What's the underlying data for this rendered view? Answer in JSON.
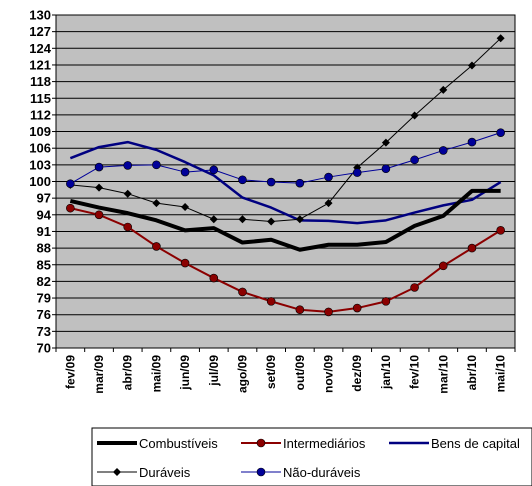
{
  "chart_data": {
    "type": "line",
    "categories": [
      "fev/09",
      "mar/09",
      "abr/09",
      "mai/09",
      "jun/09",
      "jul/09",
      "ago/09",
      "set/09",
      "out/09",
      "nov/09",
      "dez/09",
      "jan/10",
      "fev/10",
      "mar/10",
      "abr/10",
      "mai/10"
    ],
    "yticks": [
      70,
      73,
      76,
      79,
      82,
      85,
      88,
      91,
      94,
      97,
      100,
      103,
      106,
      109,
      112,
      115,
      118,
      121,
      124,
      127,
      130
    ],
    "ylim": [
      70,
      130
    ],
    "grid": true,
    "plot_background": "#c0c0c0",
    "legend_position": "bottom",
    "series": [
      {
        "name": "Combustíveis",
        "color": "#000000",
        "marker": "none",
        "width": 4,
        "values": [
          96.5,
          95.3,
          94.3,
          93.0,
          91.2,
          91.6,
          89.0,
          89.5,
          87.7,
          88.6,
          88.6,
          89.1,
          92.0,
          93.8,
          98.3,
          98.3
        ]
      },
      {
        "name": "Intermediários",
        "color": "#8b0000",
        "marker": "circle",
        "width": 2,
        "values": [
          95.2,
          94.0,
          91.8,
          88.3,
          85.3,
          82.6,
          80.1,
          78.4,
          76.9,
          76.5,
          77.2,
          78.4,
          80.9,
          84.8,
          88.0,
          91.2
        ]
      },
      {
        "name": "Bens de capital",
        "color": "#000080",
        "marker": "none",
        "width": 2.5,
        "values": [
          104.2,
          106.2,
          107.1,
          105.7,
          103.5,
          101.1,
          97.1,
          95.3,
          93.0,
          92.9,
          92.5,
          93.0,
          94.4,
          95.7,
          96.7,
          99.9
        ]
      },
      {
        "name": "Duráveis",
        "color": "#000000",
        "marker": "diamond",
        "width": 1,
        "values": [
          99.4,
          98.9,
          97.8,
          96.1,
          95.4,
          93.2,
          93.2,
          92.8,
          93.2,
          96.1,
          102.5,
          107.0,
          111.9,
          116.5,
          120.9,
          125.8
        ]
      },
      {
        "name": "Não-duráveis",
        "color": "#000099",
        "marker": "circle",
        "width": 1,
        "values": [
          99.6,
          102.6,
          102.9,
          103.0,
          101.7,
          102.1,
          100.3,
          99.9,
          99.7,
          100.8,
          101.6,
          102.3,
          103.9,
          105.6,
          107.1,
          108.8
        ]
      }
    ]
  }
}
